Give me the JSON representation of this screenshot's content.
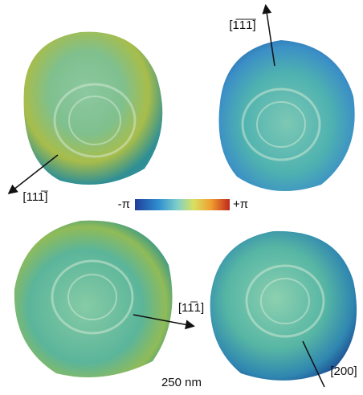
{
  "figure": {
    "colorbar": {
      "min_label": "-π",
      "max_label": "+π"
    },
    "directions": [
      "[1̅1̅1̅]",
      "[111̅]",
      "[11̅1]",
      "[200]"
    ],
    "scale_bar": "250 nm"
  }
}
